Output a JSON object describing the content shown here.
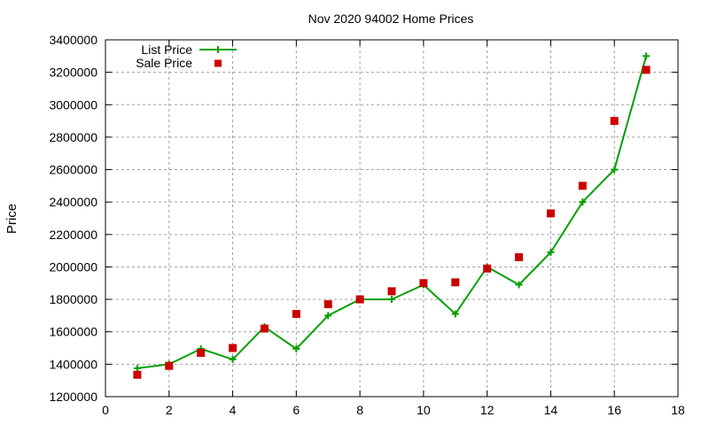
{
  "chart_data": {
    "type": "line",
    "title": "Nov 2020 94002 Home Prices",
    "xlabel": "",
    "ylabel": "Price",
    "xlim": [
      0,
      18
    ],
    "ylim": [
      1200000,
      3400000
    ],
    "xticks": [
      0,
      2,
      4,
      6,
      8,
      10,
      12,
      14,
      16,
      18
    ],
    "yticks": [
      1200000,
      1400000,
      1600000,
      1800000,
      2000000,
      2200000,
      2400000,
      2600000,
      2800000,
      3000000,
      3200000,
      3400000
    ],
    "grid": true,
    "legend_position": "top-left",
    "x": [
      1,
      2,
      3,
      4,
      5,
      6,
      7,
      8,
      9,
      10,
      11,
      12,
      13,
      14,
      15,
      16,
      17
    ],
    "series": [
      {
        "name": "List Price",
        "style": "linespoints",
        "marker": "plus",
        "color": "#00a000",
        "values": [
          1375000,
          1400000,
          1495000,
          1430000,
          1630000,
          1495000,
          1700000,
          1800000,
          1800000,
          1890000,
          1710000,
          2000000,
          1890000,
          2090000,
          2400000,
          2600000,
          3300000
        ]
      },
      {
        "name": "Sale Price",
        "style": "points",
        "marker": "square",
        "color": "#cc0000",
        "values": [
          1335000,
          1390000,
          1470000,
          1500000,
          1620000,
          1710000,
          1770000,
          1800000,
          1850000,
          1900000,
          1905000,
          1990000,
          2060000,
          2330000,
          2500000,
          2900000,
          3215000
        ]
      }
    ]
  }
}
